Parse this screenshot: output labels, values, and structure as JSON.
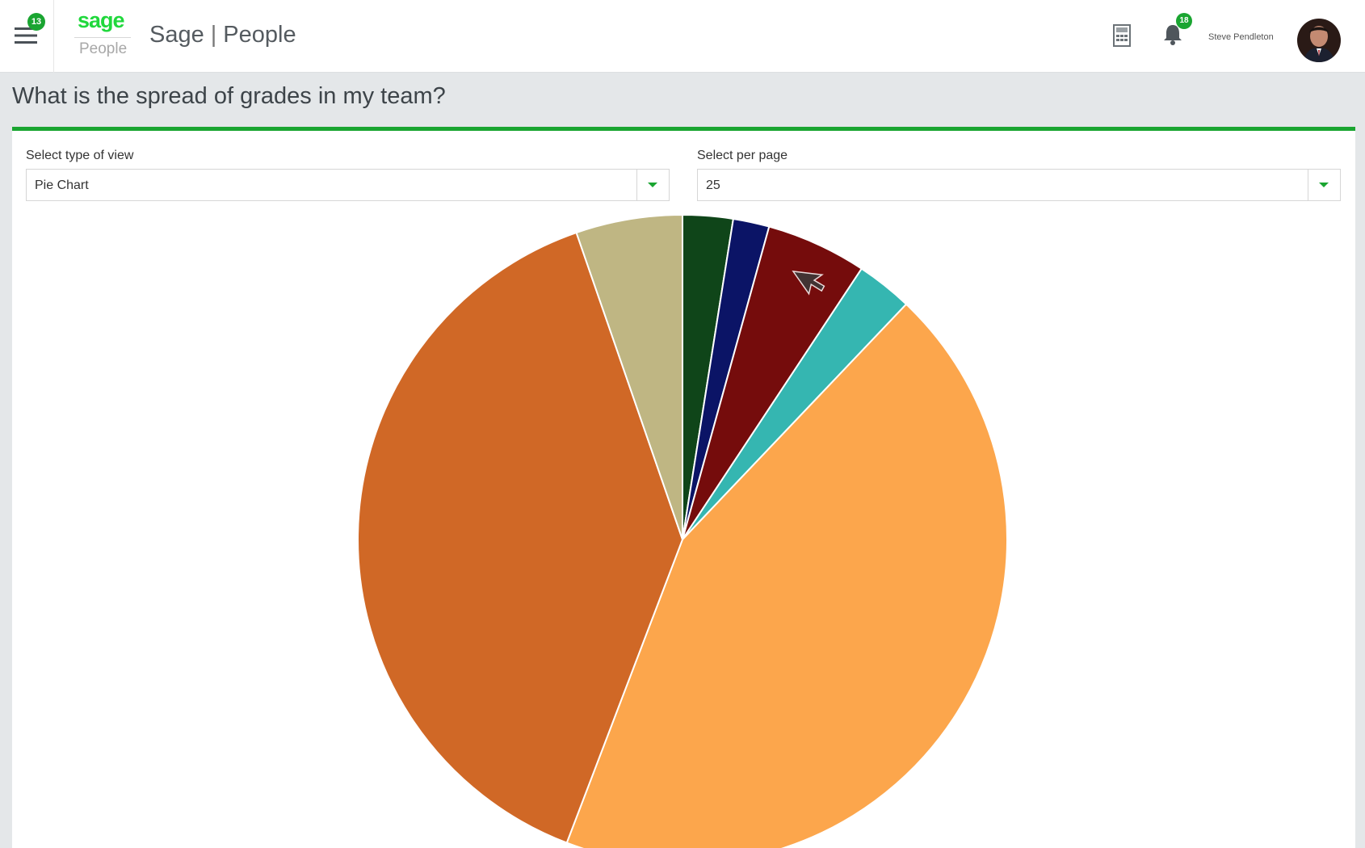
{
  "header": {
    "menu_badge": "13",
    "logo_brand": "sage",
    "logo_product": "People",
    "app_title_brand": "Sage",
    "app_title_separator": "|",
    "app_title_product": "People",
    "notification_badge": "18",
    "user_name": "Steve Pendleton"
  },
  "icons": {
    "menu": "hamburger-menu-icon",
    "calculator": "calculator-icon",
    "notifications": "bell-icon",
    "view_dropdown": "chevron-down-icon",
    "per_page_dropdown": "chevron-down-icon",
    "cursor": "mouse-pointer-icon"
  },
  "page": {
    "title": "What is the spread of grades in my team?"
  },
  "filters": {
    "view_type_label": "Select type of view",
    "view_type_value": "Pie Chart",
    "per_page_label": "Select per page",
    "per_page_value": "25"
  },
  "colors": {
    "accent": "#1aa531",
    "brand_green": "#20d83c"
  },
  "chart_data": {
    "type": "pie",
    "title": "",
    "slices": [
      {
        "value": 2.5,
        "color": "#0f4519"
      },
      {
        "value": 1.8,
        "color": "#0b1466"
      },
      {
        "value": 5.0,
        "color": "#750c0c"
      },
      {
        "value": 2.8,
        "color": "#35b6b1"
      },
      {
        "value": 43.7,
        "color": "#fca64c"
      },
      {
        "value": 38.9,
        "color": "#d06826"
      },
      {
        "value": 5.3,
        "color": "#bfb683"
      }
    ]
  }
}
